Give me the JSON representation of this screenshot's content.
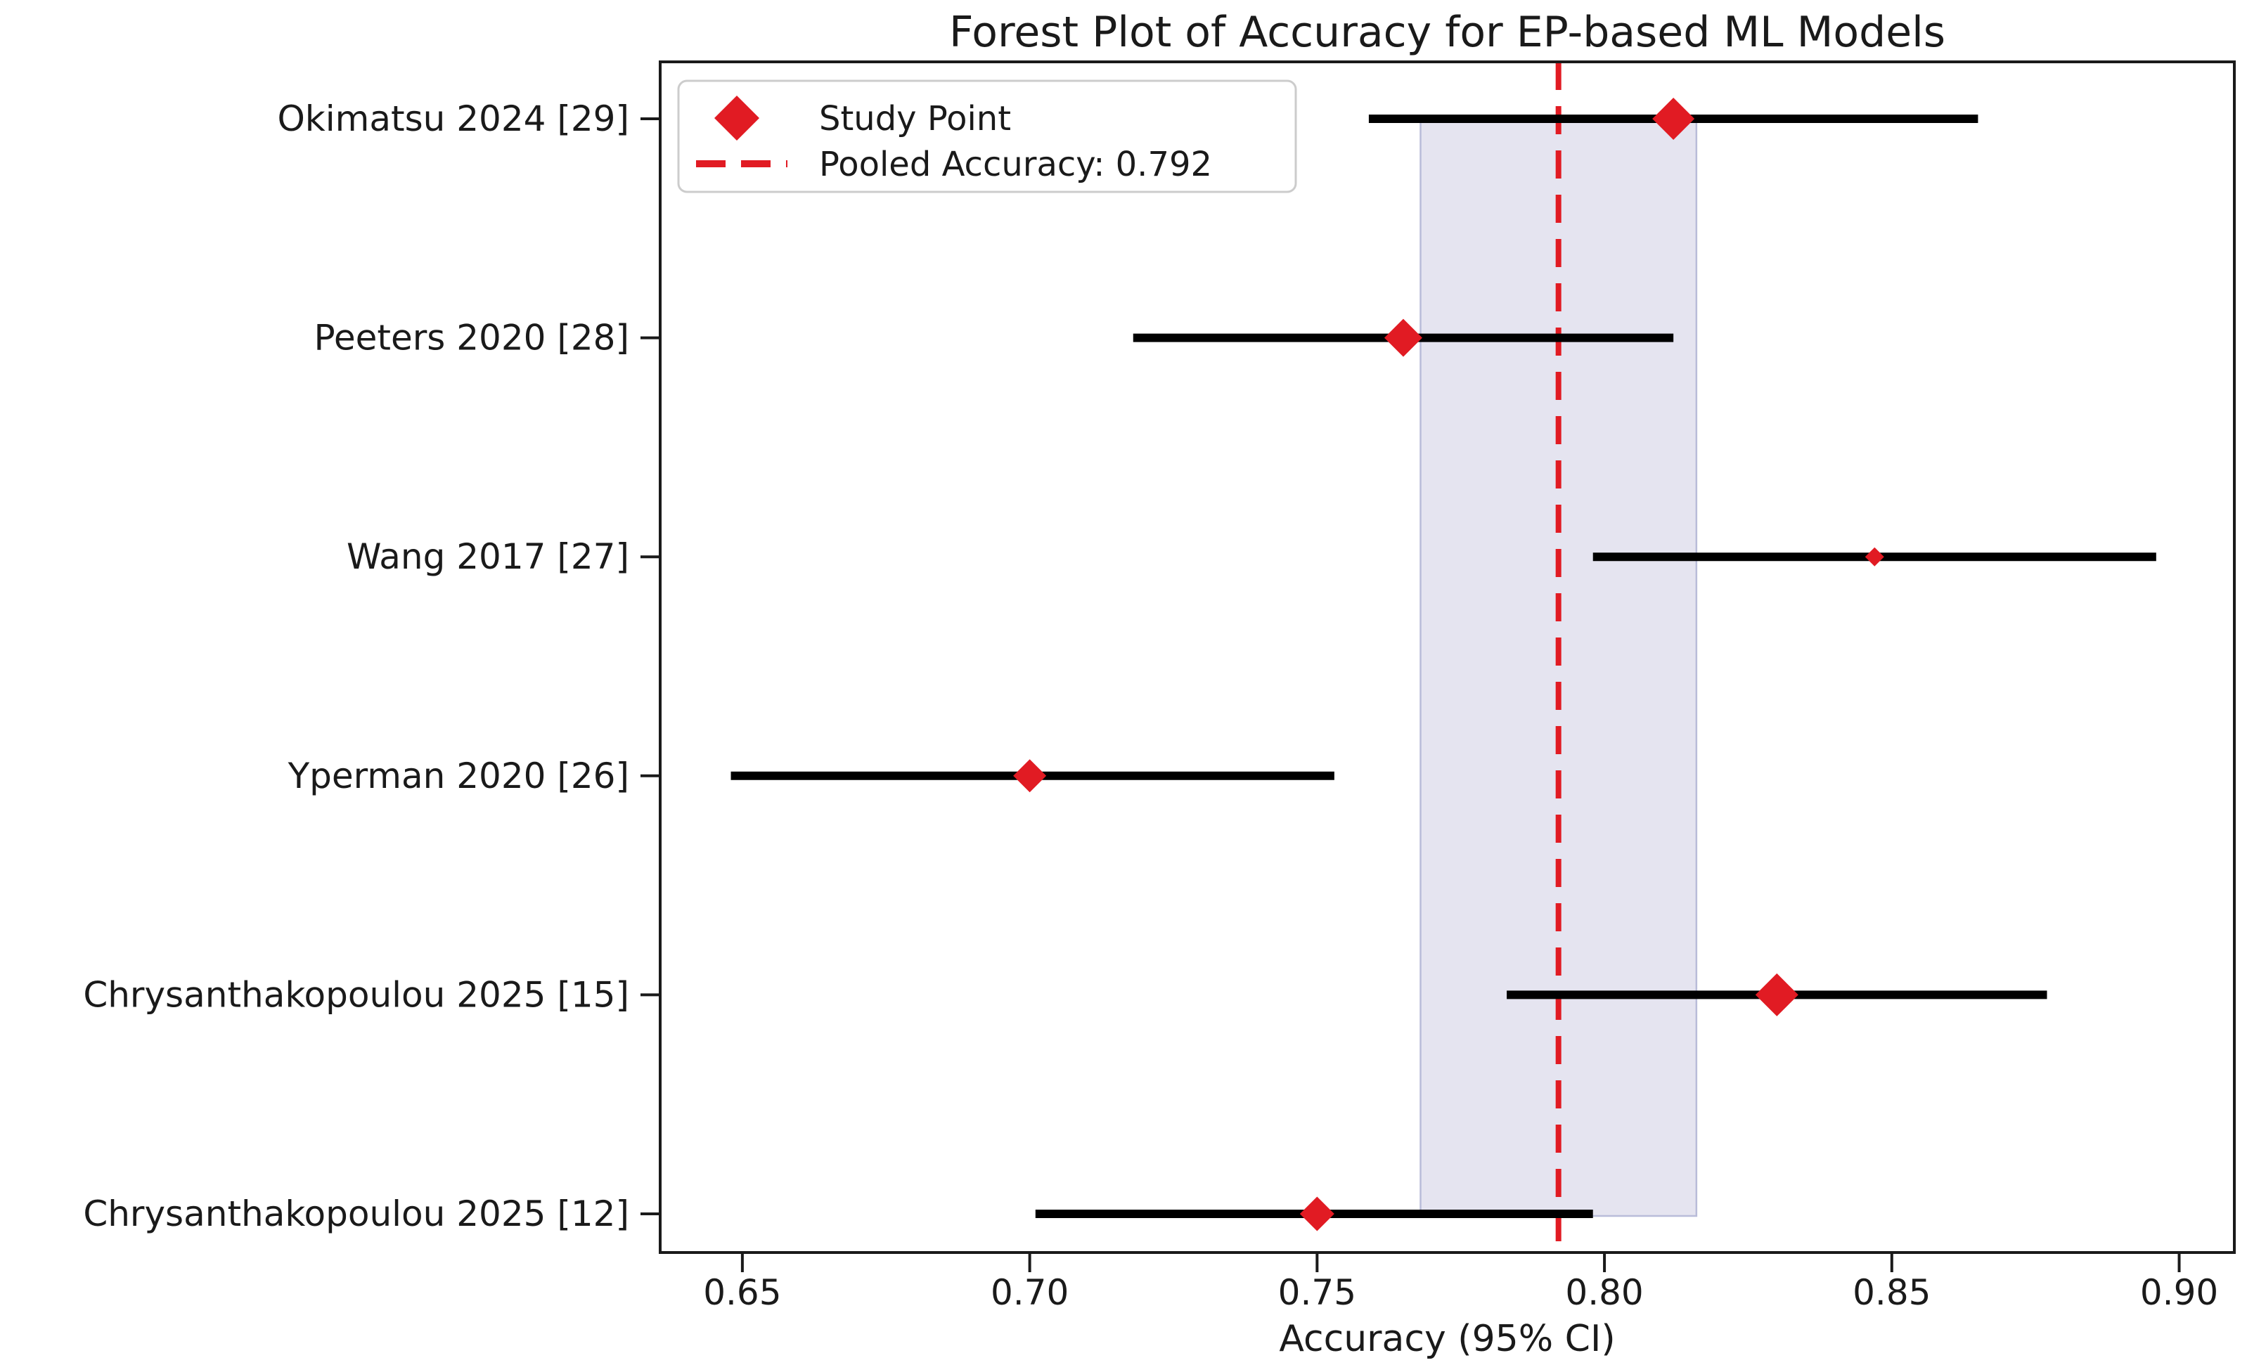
{
  "chart_data": {
    "type": "forest",
    "title": "Forest Plot of Accuracy for EP-based ML Models",
    "xlabel": "Accuracy (95% CI)",
    "xlim": [
      0.6357,
      0.9096
    ],
    "xticks": [
      0.65,
      0.7,
      0.75,
      0.8,
      0.85,
      0.9
    ],
    "xtick_labels": [
      "0.65",
      "0.70",
      "0.75",
      "0.80",
      "0.85",
      "0.90"
    ],
    "grid": false,
    "legend": {
      "position": "upper-left",
      "items": [
        {
          "label": "Study Point",
          "marker": "diamond"
        },
        {
          "label": "Pooled Accuracy: 0.792",
          "marker": "dashed-line"
        }
      ]
    },
    "studies": [
      {
        "label": "Okimatsu 2024 [29]",
        "estimate": 0.812,
        "ci_low": 0.759,
        "ci_high": 0.865,
        "marker_px": 60
      },
      {
        "label": "Peeters 2020 [28]",
        "estimate": 0.765,
        "ci_low": 0.718,
        "ci_high": 0.812,
        "marker_px": 54
      },
      {
        "label": "Wang 2017 [27]",
        "estimate": 0.847,
        "ci_low": 0.798,
        "ci_high": 0.896,
        "marker_px": 27
      },
      {
        "label": "Yperman 2020 [26]",
        "estimate": 0.7,
        "ci_low": 0.648,
        "ci_high": 0.753,
        "marker_px": 47
      },
      {
        "label": "Chrysanthakopoulou 2025 [15]",
        "estimate": 0.83,
        "ci_low": 0.783,
        "ci_high": 0.877,
        "marker_px": 61
      },
      {
        "label": "Chrysanthakopoulou 2025 [12]",
        "estimate": 0.75,
        "ci_low": 0.701,
        "ci_high": 0.798,
        "marker_px": 49
      }
    ],
    "pooled": {
      "value": 0.792,
      "ci_low": 0.768,
      "ci_high": 0.816
    },
    "colors": {
      "marker": "#e11b23",
      "ci_line": "#000000",
      "pooled_line": "#e11b23",
      "band_fill": "#e5e4f0",
      "band_edge": "#b9bcd9",
      "spine": "#1a1a1a",
      "text": "#1a1a1a",
      "legend_border": "#cccccc",
      "background": "#ffffff"
    }
  }
}
